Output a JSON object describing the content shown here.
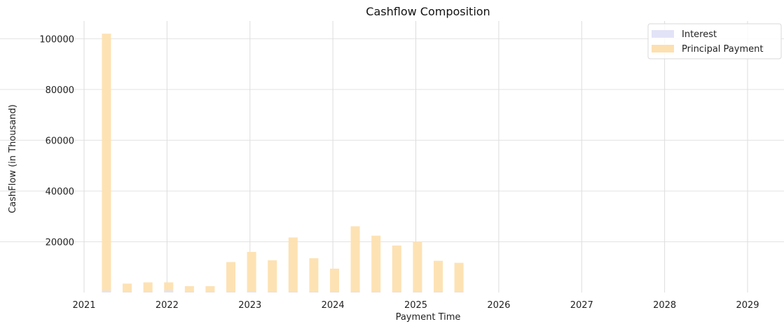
{
  "chart_data": {
    "type": "bar",
    "title": "Cashflow Composition",
    "xlabel": "Payment Time",
    "ylabel": "CashFlow (in Thousand)",
    "xlim": [
      2021.0,
      2029.0
    ],
    "ylim": [
      0,
      107000
    ],
    "xticks": [
      2021,
      2022,
      2023,
      2024,
      2025,
      2026,
      2027,
      2028,
      2029
    ],
    "yticks": [
      20000,
      40000,
      60000,
      80000,
      100000
    ],
    "grid": true,
    "legend_position": "top-right",
    "bar_width_years": 0.11,
    "series": [
      {
        "name": "Interest",
        "color": "#e2e3f7",
        "x": [
          2021.27,
          2021.52,
          2021.77,
          2022.02,
          2022.27,
          2022.52,
          2022.77,
          2023.02,
          2023.27,
          2023.52,
          2023.77,
          2024.02,
          2024.27,
          2024.52,
          2024.77,
          2025.02,
          2025.27,
          2025.52
        ],
        "values": [
          700,
          150,
          150,
          800,
          150,
          150,
          150,
          450,
          150,
          150,
          150,
          150,
          150,
          150,
          150,
          150,
          150,
          150
        ]
      },
      {
        "name": "Principal Payment",
        "color": "#fde0b0",
        "x": [
          2021.27,
          2021.52,
          2021.77,
          2022.02,
          2022.27,
          2022.52,
          2022.77,
          2023.02,
          2023.27,
          2023.52,
          2023.77,
          2024.02,
          2024.27,
          2024.52,
          2024.77,
          2025.02,
          2025.27,
          2025.52
        ],
        "values": [
          102000,
          3500,
          4000,
          4000,
          2500,
          2500,
          12000,
          16000,
          12700,
          21700,
          13500,
          9400,
          26100,
          22400,
          18500,
          20000,
          12500,
          11700
        ]
      }
    ]
  }
}
